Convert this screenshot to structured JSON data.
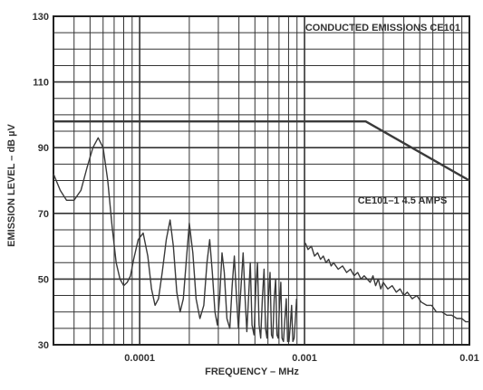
{
  "chart_data": {
    "type": "line",
    "title": "CONDUCTED EMISSIONS  CE101",
    "xlabel": "FREQUENCY – MHz",
    "ylabel": "EMISSION LEVEL – dB µV",
    "x_scale": "log",
    "xlim": [
      3e-05,
      0.01
    ],
    "ylim": [
      30,
      130
    ],
    "grid": true,
    "legend": "none",
    "x_ticks": [
      {
        "value": 0.0001,
        "label": "0.0001"
      },
      {
        "value": 0.001,
        "label": "0.001"
      },
      {
        "value": 0.01,
        "label": "0.01"
      }
    ],
    "y_ticks": [
      {
        "value": 30,
        "label": "30"
      },
      {
        "value": 50,
        "label": "50"
      },
      {
        "value": 70,
        "label": "70"
      },
      {
        "value": 90,
        "label": "90"
      },
      {
        "value": 110,
        "label": "110"
      },
      {
        "value": 130,
        "label": "130"
      }
    ],
    "annotations": [
      {
        "text": "CE101–1   4.5 AMPS",
        "x": 0.0021,
        "y": 73
      }
    ],
    "series": [
      {
        "role": "limit",
        "x": [
          3e-05,
          0.00235,
          0.01
        ],
        "y": [
          98,
          98,
          80
        ]
      },
      {
        "role": "measured",
        "x": [
          3e-05,
          3.3e-05,
          3.6e-05,
          4e-05,
          4.4e-05,
          4.8e-05,
          5.2e-05,
          5.6e-05,
          6e-05,
          6.4e-05,
          6.8e-05,
          7.2e-05,
          7.6e-05,
          8e-05,
          8.4e-05,
          8.8e-05,
          9.2e-05,
          9.8e-05,
          0.000105,
          0.000112,
          0.000118,
          0.000124,
          0.00013,
          0.000137,
          0.000145,
          0.000153,
          0.00016,
          0.000168,
          0.000176,
          0.000184,
          0.000192,
          0.0002,
          0.00021,
          0.00022,
          0.000232,
          0.000245,
          0.000256,
          0.000266,
          0.000276,
          0.000286,
          0.000296,
          0.000306,
          0.000316,
          0.000326,
          0.000338,
          0.000352,
          0.000364,
          0.000375,
          0.000386,
          0.000397,
          0.00041,
          0.000424,
          0.000436,
          0.000447,
          0.000458,
          0.000469,
          0.00048,
          0.000494,
          0.000507,
          0.000518,
          0.00053,
          0.000542,
          0.000555,
          0.000568,
          0.00058,
          0.000592,
          0.000605,
          0.000618,
          0.00063,
          0.000642,
          0.000655,
          0.000668,
          0.00068,
          0.000692,
          0.000705,
          0.000718,
          0.00073,
          0.000745,
          0.00076,
          0.000775,
          0.00079,
          0.000805,
          0.00082,
          0.000835,
          0.00085,
          0.000865,
          0.00088,
          0.000895
        ],
        "y": [
          82,
          77,
          74,
          74,
          77,
          84,
          90,
          93,
          90,
          80,
          66,
          55,
          50,
          48,
          49,
          51,
          56,
          62,
          64,
          57,
          47,
          42,
          44,
          52,
          62,
          68,
          60,
          46,
          40,
          44,
          56,
          67,
          58,
          44,
          38,
          42,
          55,
          62,
          52,
          40,
          36,
          45,
          58,
          52,
          38,
          35,
          48,
          57,
          45,
          35,
          46,
          58,
          44,
          34,
          45,
          55,
          36,
          33,
          48,
          55,
          36,
          32,
          44,
          53,
          35,
          32,
          45,
          52,
          33,
          32,
          44,
          50,
          33,
          32,
          42,
          49,
          32,
          31,
          38,
          44,
          31,
          31,
          36,
          42,
          31,
          32,
          38,
          44
        ]
      },
      {
        "role": "measured",
        "x": [
          0.00101,
          0.00105,
          0.0011,
          0.00115,
          0.0012,
          0.00125,
          0.0013,
          0.00135,
          0.0014,
          0.00145,
          0.0015,
          0.0016,
          0.0017,
          0.0018,
          0.0019,
          0.002,
          0.0021,
          0.0022,
          0.0023,
          0.0024,
          0.0025,
          0.0026,
          0.0027,
          0.0028,
          0.0029,
          0.003,
          0.0032,
          0.0034,
          0.0036,
          0.0038,
          0.004,
          0.0042,
          0.0045,
          0.0048,
          0.0051,
          0.0055,
          0.0059,
          0.0063,
          0.0068,
          0.0073,
          0.0078,
          0.0084,
          0.009,
          0.0095,
          0.01
        ],
        "y": [
          61,
          59,
          60,
          57,
          58,
          56,
          57,
          55,
          56,
          54,
          55,
          53,
          54,
          52,
          53,
          51,
          52,
          50,
          51,
          50,
          49,
          51,
          48,
          50,
          47,
          49,
          47,
          48,
          46,
          47,
          45,
          46,
          44,
          45,
          43,
          42,
          42,
          40,
          40,
          39,
          39,
          38,
          38,
          37,
          37
        ]
      }
    ]
  }
}
